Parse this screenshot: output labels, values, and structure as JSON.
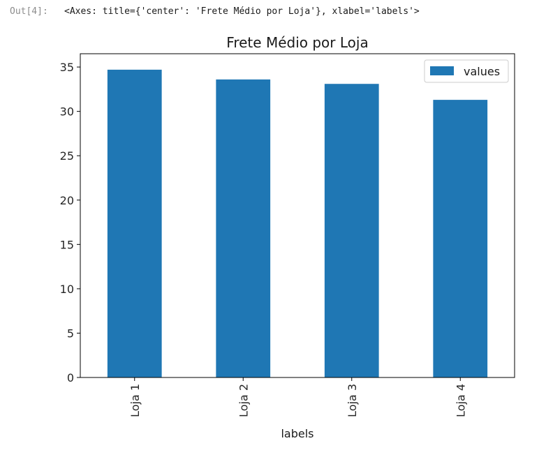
{
  "cell": {
    "prompt": "Out[4]:",
    "output_text": "<Axes: title={'center': 'Frete Médio por Loja'}, xlabel='labels'>"
  },
  "colors": {
    "bar": "#1f77b4",
    "axis": "#000000",
    "text": "#262626"
  },
  "chart_data": {
    "type": "bar",
    "title": "Frete Médio por Loja",
    "xlabel": "labels",
    "ylabel": "",
    "categories": [
      "Loja 1",
      "Loja 2",
      "Loja 3",
      "Loja 4"
    ],
    "series": [
      {
        "name": "values",
        "values": [
          34.7,
          33.6,
          33.1,
          31.3
        ]
      }
    ],
    "ylim": [
      0,
      36.5
    ],
    "yticks": [
      0,
      5,
      10,
      15,
      20,
      25,
      30,
      35
    ],
    "grid": false,
    "legend": "top-right"
  }
}
